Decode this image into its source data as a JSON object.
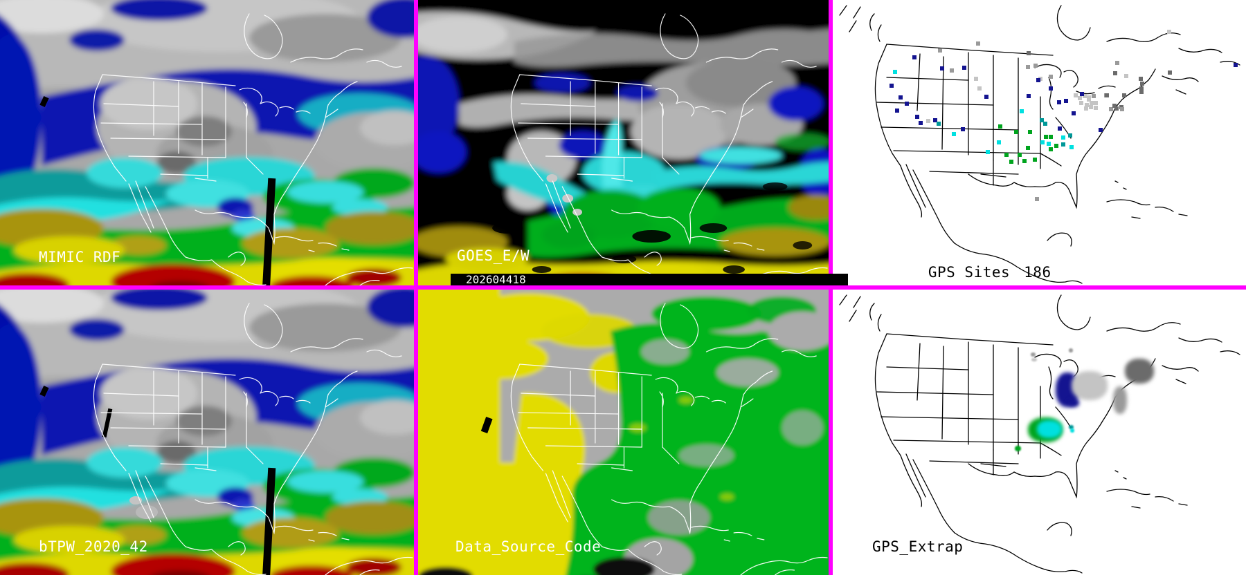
{
  "panels": {
    "mimic_rdf": {
      "label": "MIMIC RDF"
    },
    "goes_ew": {
      "label": "GOES_E/W",
      "timestamp": "202604418"
    },
    "gps_sites": {
      "label": "GPS Sites",
      "count": "186",
      "dots": [
        [
          207,
          60,
          "g"
        ],
        [
          152,
          70,
          "g"
        ],
        [
          115,
          80,
          "n"
        ],
        [
          280,
          74,
          "dg"
        ],
        [
          290,
          92,
          "g"
        ],
        [
          155,
          96,
          "n"
        ],
        [
          169,
          99,
          "g"
        ],
        [
          187,
          95,
          "n"
        ],
        [
          279,
          94,
          "g"
        ],
        [
          87,
          101,
          "c"
        ],
        [
          204,
          111,
          "lg"
        ],
        [
          297,
          111,
          "lg"
        ],
        [
          312,
          108,
          "g"
        ],
        [
          294,
          113,
          "n"
        ],
        [
          82,
          121,
          "n"
        ],
        [
          209,
          125,
          "lg"
        ],
        [
          219,
          137,
          "n"
        ],
        [
          95,
          138,
          "n"
        ],
        [
          104,
          147,
          "n"
        ],
        [
          90,
          157,
          "n"
        ],
        [
          280,
          136,
          "n"
        ],
        [
          312,
          125,
          "n"
        ],
        [
          324,
          145,
          "n"
        ],
        [
          334,
          143,
          "n"
        ],
        [
          345,
          161,
          "n"
        ],
        [
          348,
          135,
          "lg"
        ],
        [
          354,
          139,
          "lg"
        ],
        [
          361,
          136,
          "lg"
        ],
        [
          367,
          141,
          "lg"
        ],
        [
          356,
          146,
          "lg"
        ],
        [
          364,
          149,
          "lg"
        ],
        [
          371,
          146,
          "lg"
        ],
        [
          374,
          136,
          "g"
        ],
        [
          392,
          135,
          "g"
        ],
        [
          399,
          155,
          "g"
        ],
        [
          414,
          152,
          "dg"
        ],
        [
          119,
          166,
          "n"
        ],
        [
          124,
          175,
          "n"
        ],
        [
          135,
          172,
          "lg"
        ],
        [
          145,
          171,
          "n"
        ],
        [
          150,
          176,
          "t"
        ],
        [
          270,
          158,
          "c"
        ],
        [
          299,
          171,
          "t"
        ],
        [
          304,
          176,
          "t"
        ],
        [
          239,
          180,
          "gr"
        ],
        [
          172,
          191,
          "c"
        ],
        [
          185,
          184,
          "n"
        ],
        [
          325,
          183,
          "n"
        ],
        [
          340,
          193,
          "t"
        ],
        [
          262,
          188,
          "gr"
        ],
        [
          282,
          188,
          "gr"
        ],
        [
          305,
          195,
          "gr"
        ],
        [
          312,
          195,
          "gr"
        ],
        [
          330,
          196,
          "c"
        ],
        [
          384,
          185,
          "n"
        ],
        [
          237,
          203,
          "c"
        ],
        [
          279,
          211,
          "gr"
        ],
        [
          300,
          203,
          "c"
        ],
        [
          309,
          205,
          "c"
        ],
        [
          312,
          213,
          "gr"
        ],
        [
          320,
          208,
          "gr"
        ],
        [
          330,
          206,
          "t"
        ],
        [
          342,
          210,
          "c"
        ],
        [
          221,
          217,
          "c"
        ],
        [
          248,
          221,
          "gr"
        ],
        [
          267,
          221,
          "gr"
        ],
        [
          274,
          230,
          "gr"
        ],
        [
          255,
          231,
          "gr"
        ],
        [
          289,
          228,
          "gr"
        ],
        [
          483,
          43,
          "lg"
        ],
        [
          408,
          88,
          "g"
        ],
        [
          405,
          103,
          "dg"
        ],
        [
          421,
          107,
          "lg"
        ],
        [
          484,
          102,
          "dg"
        ],
        [
          442,
          111,
          "dg"
        ],
        [
          444,
          118,
          "dg"
        ],
        [
          443,
          125,
          "dg"
        ],
        [
          443,
          130,
          "dg"
        ],
        [
          579,
          91,
          "n"
        ],
        [
          393,
          135,
          "dg"
        ],
        [
          418,
          135,
          "dg"
        ],
        [
          357,
          133,
          "n"
        ],
        [
          367,
          138,
          "lg"
        ],
        [
          377,
          146,
          "lg"
        ],
        [
          370,
          152,
          "lg"
        ],
        [
          377,
          153,
          "lg"
        ],
        [
          363,
          154,
          "lg"
        ],
        [
          404,
          150,
          "dg"
        ],
        [
          407,
          154,
          "dg"
        ],
        [
          415,
          155,
          "g"
        ],
        [
          292,
          285,
          "g"
        ]
      ]
    },
    "btpw": {
      "label": "bTPW_2020_42"
    },
    "data_source_code": {
      "label": "Data_Source_Code"
    },
    "gps_extrap": {
      "label": "GPS_Extrap",
      "blobs": [
        [
          322,
          120,
          34,
          50,
          "n"
        ],
        [
          340,
          158,
          16,
          12,
          "n"
        ],
        [
          345,
          118,
          52,
          42,
          "lg"
        ],
        [
          422,
          100,
          42,
          36,
          "dg"
        ],
        [
          405,
          140,
          20,
          40,
          "g"
        ],
        [
          282,
          185,
          50,
          36,
          "gr"
        ],
        [
          295,
          189,
          36,
          26,
          "c"
        ],
        [
          341,
          196,
          7,
          6,
          "t"
        ],
        [
          343,
          201,
          6,
          6,
          "c"
        ],
        [
          286,
          91,
          7,
          6,
          "g"
        ],
        [
          287,
          99,
          8,
          5,
          "lg"
        ],
        [
          263,
          226,
          9,
          8,
          "gr"
        ],
        [
          341,
          85,
          6,
          6,
          "g"
        ]
      ]
    }
  },
  "palette": {
    "n": "#141490",
    "g": "#9a9a9a",
    "lg": "#c4c4c4",
    "dg": "#6b6b6b",
    "c": "#00e0e0",
    "t": "#009898",
    "gr": "#00a41e"
  },
  "colors": {
    "panel_border": "#ff00ff",
    "timestamp_bar_bg": "#000000",
    "timestamp_text": "#ffffff",
    "map_lines_dark_panels": "#ffffff",
    "map_lines_light_panels": "#000000",
    "tpw_scale": [
      "#000000",
      "#0a15b0",
      "#00d2d2",
      "#00b41e",
      "#a89410",
      "#e0da00",
      "#b40000",
      "#780000",
      "#b4b4b4"
    ],
    "data_source_codes": {
      "gray_no_data": "#ababab",
      "yellow_goes_w": "#e2dc00",
      "green_goes_e": "#00b41e"
    }
  }
}
